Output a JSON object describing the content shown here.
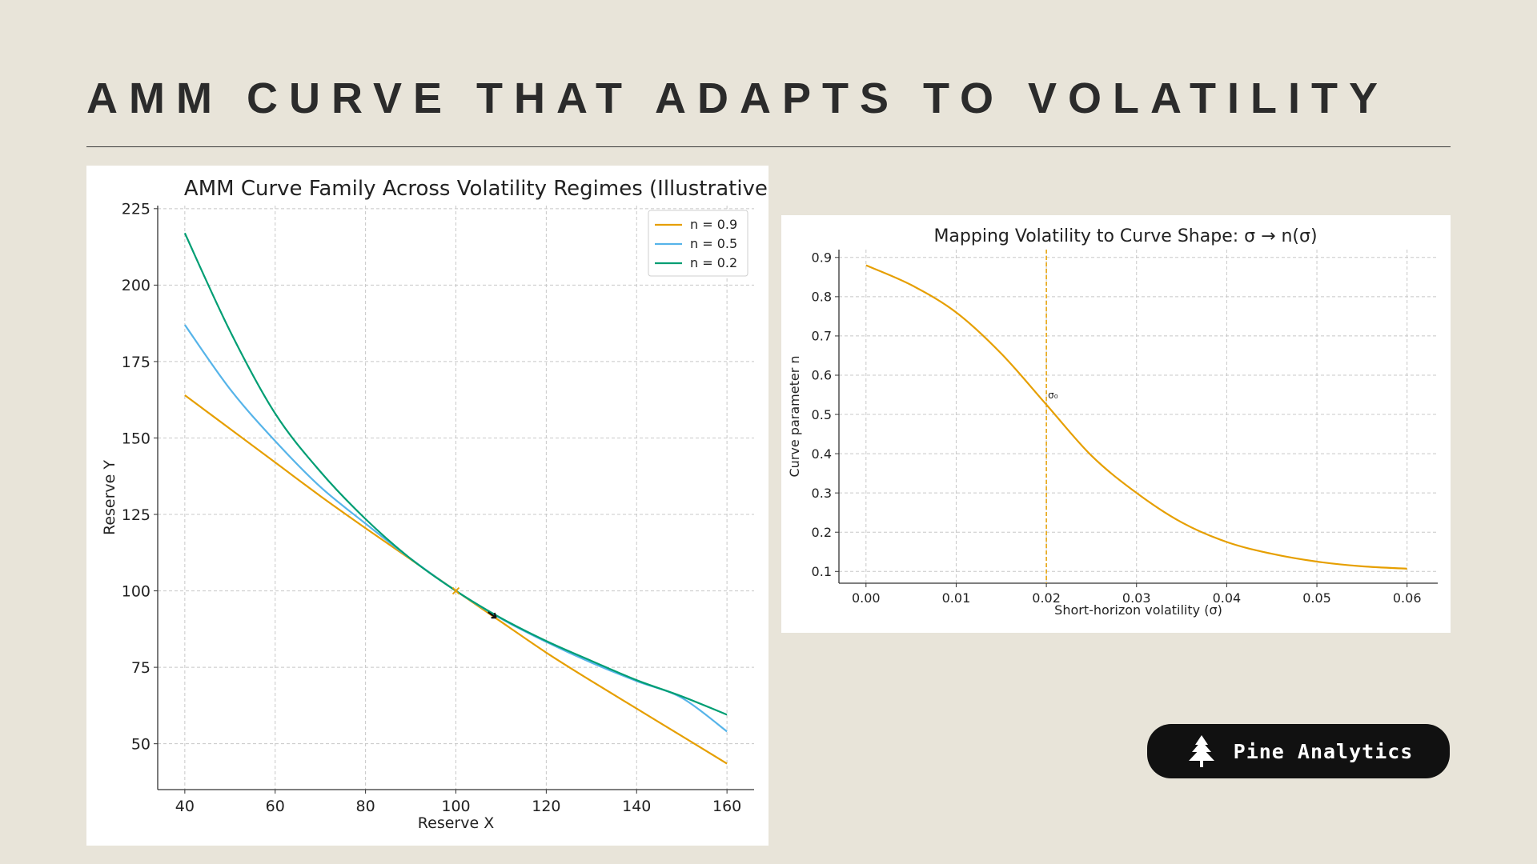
{
  "slide": {
    "title": "AMM CURVE THAT ADAPTS TO VOLATILITY"
  },
  "brand": {
    "name": "Pine Analytics",
    "icon": "pine-tree-icon"
  },
  "colors": {
    "orange": "#e69f00",
    "blue": "#56b4e9",
    "green": "#009e73"
  },
  "chart_data": [
    {
      "type": "line",
      "title": "AMM Curve Family Across Volatility Regimes (Illustrative)",
      "xlabel": "Reserve X",
      "ylabel": "Reserve Y",
      "xlim": [
        34,
        166
      ],
      "ylim": [
        35,
        226
      ],
      "xticks": [
        40,
        60,
        80,
        100,
        120,
        140,
        160
      ],
      "yticks": [
        50,
        75,
        100,
        125,
        150,
        175,
        200,
        225
      ],
      "grid": true,
      "legend_position": "top-right",
      "x": [
        40,
        50,
        60,
        70,
        80,
        90,
        100,
        110,
        120,
        130,
        140,
        150,
        160
      ],
      "series": [
        {
          "name": "n = 0.9",
          "color": "#e69f00",
          "values": [
            164,
            153,
            142,
            131,
            120.5,
            110.3,
            100,
            89.9,
            79.8,
            70.5,
            61.5,
            52.5,
            43.5
          ]
        },
        {
          "name": "n = 0.5",
          "color": "#56b4e9",
          "values": [
            187,
            166,
            149,
            134,
            122,
            110.5,
            100,
            90.9,
            83.3,
            76.5,
            70.5,
            65,
            54
          ]
        },
        {
          "name": "n = 0.2",
          "color": "#009e73",
          "values": [
            217,
            185,
            158,
            139,
            123.5,
            110.5,
            100,
            91.1,
            83.6,
            77.1,
            70.8,
            65.5,
            59.5
          ]
        }
      ],
      "markers": [
        {
          "label": "x",
          "x": 100,
          "y": 100,
          "color": "#e69f00"
        },
        {
          "label": "arrow",
          "x": 108,
          "y": 92,
          "color": "#111111"
        }
      ]
    },
    {
      "type": "line",
      "title": "Mapping Volatility to Curve Shape: σ → n(σ)",
      "xlabel": "Short-horizon volatility (σ)",
      "ylabel": "Curve parameter n",
      "xlim": [
        -0.003,
        0.0634
      ],
      "ylim": [
        0.07,
        0.92
      ],
      "xticks": [
        0,
        0.01,
        0.02,
        0.03,
        0.04,
        0.05,
        0.06
      ],
      "xtick_labels": [
        "0.00",
        "0.01",
        "0.02",
        "0.03",
        "0.04",
        "0.05",
        "0.06"
      ],
      "yticks": [
        0.1,
        0.2,
        0.3,
        0.4,
        0.5,
        0.6,
        0.7,
        0.8,
        0.9
      ],
      "ytick_labels": [
        "0.1",
        "0.2",
        "0.3",
        "0.4",
        "0.5",
        "0.6",
        "0.7",
        "0.8",
        "0.9"
      ],
      "grid": true,
      "x": [
        0,
        0.005,
        0.01,
        0.015,
        0.02,
        0.025,
        0.03,
        0.035,
        0.04,
        0.045,
        0.05,
        0.055,
        0.06
      ],
      "series": [
        {
          "name": "n(σ)",
          "color": "#e69f00",
          "values": [
            0.88,
            0.83,
            0.76,
            0.655,
            0.525,
            0.395,
            0.3,
            0.225,
            0.175,
            0.145,
            0.125,
            0.113,
            0.107
          ]
        }
      ],
      "vline": {
        "x": 0.02,
        "label": "σ₀",
        "color": "#e69f00"
      }
    }
  ]
}
